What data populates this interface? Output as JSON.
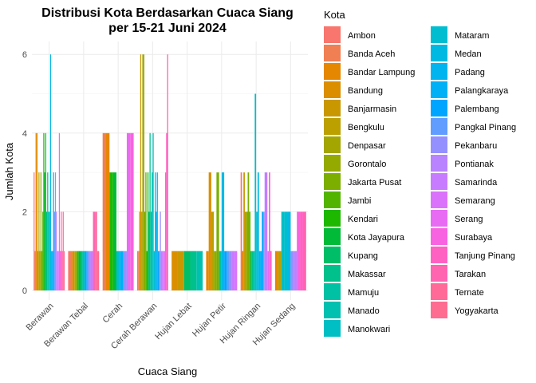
{
  "chart_data": {
    "type": "bar",
    "title_line1": "Distribusi Kota Berdasarkan Cuaca Siang",
    "title_line2": "per 15-21 Juni 2024",
    "xlabel": "Cuaca Siang",
    "ylabel": "Jumlah Kota",
    "ylim": [
      0,
      6.6
    ],
    "yticks": [
      0,
      2,
      4,
      6
    ],
    "grid": true,
    "legend_position": "right",
    "legend_title": "Kota",
    "categories": [
      "Berawan",
      "Berawan Tebal",
      "Cerah",
      "Cerah Berawan",
      "Hujan Lebat",
      "Hujan Petir",
      "Hujan Ringan",
      "Hujan Sedang"
    ],
    "series": [
      {
        "name": "Ambon",
        "color": "#F8766D"
      },
      {
        "name": "Banda Aceh",
        "color": "#F07F54"
      },
      {
        "name": "Bandar Lampung",
        "color": "#E58700"
      },
      {
        "name": "Bandung",
        "color": "#DB8E00"
      },
      {
        "name": "Banjarmasin",
        "color": "#C99800"
      },
      {
        "name": "Bengkulu",
        "color": "#BBA000"
      },
      {
        "name": "Denpasar",
        "color": "#A3A500"
      },
      {
        "name": "Gorontalo",
        "color": "#94AA00"
      },
      {
        "name": "Jakarta Pusat",
        "color": "#7CAE00"
      },
      {
        "name": "Jambi",
        "color": "#53B400"
      },
      {
        "name": "Kendari",
        "color": "#1FB800"
      },
      {
        "name": "Kota Jayapura",
        "color": "#00BA38"
      },
      {
        "name": "Kupang",
        "color": "#00BE67"
      },
      {
        "name": "Makassar",
        "color": "#00C08B"
      },
      {
        "name": "Mamuju",
        "color": "#00C1A3"
      },
      {
        "name": "Manado",
        "color": "#00C0AF"
      },
      {
        "name": "Manokwari",
        "color": "#00BFC4"
      },
      {
        "name": "Mataram",
        "color": "#00BDD0"
      },
      {
        "name": "Medan",
        "color": "#00B9E3"
      },
      {
        "name": "Padang",
        "color": "#00B4EF"
      },
      {
        "name": "Palangkaraya",
        "color": "#00B0F6"
      },
      {
        "name": "Palembang",
        "color": "#00A5FF"
      },
      {
        "name": "Pangkal Pinang",
        "color": "#619CFF"
      },
      {
        "name": "Pekanbaru",
        "color": "#9590FF"
      },
      {
        "name": "Pontianak",
        "color": "#B983FF"
      },
      {
        "name": "Samarinda",
        "color": "#C77CFF"
      },
      {
        "name": "Semarang",
        "color": "#DB72FB"
      },
      {
        "name": "Serang",
        "color": "#E76BF3"
      },
      {
        "name": "Surabaya",
        "color": "#F763E0"
      },
      {
        "name": "Tanjung Pinang",
        "color": "#FF61C3"
      },
      {
        "name": "Tarakan",
        "color": "#FF64B0"
      },
      {
        "name": "Ternate",
        "color": "#FF6A98"
      },
      {
        "name": "Yogyakarta",
        "color": "#FF6C91"
      }
    ],
    "bars": [
      {
        "category": "Berawan",
        "values": [
          [
            "Ambon",
            3
          ],
          [
            "Banda Aceh",
            1
          ],
          [
            "Bandar Lampung",
            4
          ],
          [
            "Bandung",
            4
          ],
          [
            "Banjarmasin",
            1
          ],
          [
            "Bengkulu",
            3
          ],
          [
            "Denpasar",
            1
          ],
          [
            "Gorontalo",
            3
          ],
          [
            "Jakarta Pusat",
            1
          ],
          [
            "Jambi",
            2
          ],
          [
            "Kendari",
            4
          ],
          [
            "Kota Jayapura",
            3
          ],
          [
            "Kupang",
            4
          ],
          [
            "Makassar",
            2
          ],
          [
            "Mamuju",
            3
          ],
          [
            "Manado",
            2
          ],
          [
            "Manokwari",
            2
          ],
          [
            "Medan",
            6
          ],
          [
            "Padang",
            1
          ],
          [
            "Palangkaraya",
            1
          ],
          [
            "Palembang",
            3
          ],
          [
            "Pangkal Pinang",
            2
          ],
          [
            "Pekanbaru",
            3
          ],
          [
            "Pontianak",
            2
          ],
          [
            "Samarinda",
            1
          ],
          [
            "Semarang",
            1
          ],
          [
            "Serang",
            4
          ],
          [
            "Surabaya",
            1
          ],
          [
            "Tanjung Pinang",
            2
          ],
          [
            "Tarakan",
            1
          ],
          [
            "Ternate",
            2
          ],
          [
            "Yogyakarta",
            1
          ]
        ]
      },
      {
        "category": "Berawan Tebal",
        "values": [
          [
            "Ambon",
            1
          ],
          [
            "Banda Aceh",
            1
          ],
          [
            "Bandung",
            1
          ],
          [
            "Bengkulu",
            1
          ],
          [
            "Jambi",
            1
          ],
          [
            "Kota Jayapura",
            1
          ],
          [
            "Makassar",
            1
          ],
          [
            "Manado",
            1
          ],
          [
            "Palembang",
            1
          ],
          [
            "Pangkal Pinang",
            1
          ],
          [
            "Pontianak",
            1
          ],
          [
            "Samarinda",
            1
          ],
          [
            "Tarakan",
            2
          ],
          [
            "Ternate",
            2
          ],
          [
            "Yogyakarta",
            1
          ]
        ]
      },
      {
        "category": "Cerah",
        "values": [
          [
            "Banda Aceh",
            4
          ],
          [
            "Bandar Lampung",
            4
          ],
          [
            "Kendari",
            3
          ],
          [
            "Kota Jayapura",
            3
          ],
          [
            "Mataram",
            1
          ],
          [
            "Palangkaraya",
            1
          ],
          [
            "Pekanbaru",
            1
          ],
          [
            "Serang",
            4
          ],
          [
            "Surabaya",
            4
          ]
        ]
      },
      {
        "category": "Cerah Berawan",
        "values": [
          [
            "Ambon",
            1
          ],
          [
            "Banda Aceh",
            1
          ],
          [
            "Bandung",
            2
          ],
          [
            "Banjarmasin",
            6
          ],
          [
            "Bengkulu",
            2
          ],
          [
            "Denpasar",
            6
          ],
          [
            "Gorontalo",
            6
          ],
          [
            "Jakarta Pusat",
            2
          ],
          [
            "Jambi",
            3
          ],
          [
            "Kendari",
            1
          ],
          [
            "Kota Jayapura",
            3
          ],
          [
            "Kupang",
            2
          ],
          [
            "Makassar",
            4
          ],
          [
            "Mamuju",
            2
          ],
          [
            "Manado",
            3
          ],
          [
            "Manokwari",
            4
          ],
          [
            "Mataram",
            1
          ],
          [
            "Medan",
            3
          ],
          [
            "Padang",
            2
          ],
          [
            "Palangkaraya",
            3
          ],
          [
            "Palembang",
            1
          ],
          [
            "Pangkal Pinang",
            1
          ],
          [
            "Pekanbaru",
            2
          ],
          [
            "Pontianak",
            1
          ],
          [
            "Samarinda",
            1
          ],
          [
            "Semarang",
            1
          ],
          [
            "Serang",
            1
          ],
          [
            "Surabaya",
            3
          ],
          [
            "Tanjung Pinang",
            4
          ],
          [
            "Tarakan",
            6
          ]
        ]
      },
      {
        "category": "Hujan Lebat",
        "values": [
          [
            "Bandung",
            1
          ],
          [
            "Banjarmasin",
            1
          ],
          [
            "Kupang",
            1
          ],
          [
            "Makassar",
            1
          ],
          [
            "Manado",
            1
          ]
        ]
      },
      {
        "category": "Hujan Petir",
        "values": [
          [
            "Bandar Lampung",
            1
          ],
          [
            "Bandung",
            3
          ],
          [
            "Bengkulu",
            2
          ],
          [
            "Gorontalo",
            1
          ],
          [
            "Jakarta Pusat",
            3
          ],
          [
            "Mamuju",
            1
          ],
          [
            "Medan",
            3
          ],
          [
            "Palembang",
            1
          ],
          [
            "Pangkal Pinang",
            1
          ],
          [
            "Pekanbaru",
            1
          ],
          [
            "Samarinda",
            1
          ],
          [
            "Semarang",
            1
          ]
        ]
      },
      {
        "category": "Hujan Ringan",
        "values": [
          [
            "Ambon",
            3
          ],
          [
            "Bandar Lampung",
            1
          ],
          [
            "Banjarmasin",
            3
          ],
          [
            "Denpasar",
            2
          ],
          [
            "Gorontalo",
            2
          ],
          [
            "Jakarta Pusat",
            3
          ],
          [
            "Jambi",
            2
          ],
          [
            "Kupang",
            1
          ],
          [
            "Makassar",
            1
          ],
          [
            "Mamuju",
            1
          ],
          [
            "Manokwari",
            5
          ],
          [
            "Mataram",
            2
          ],
          [
            "Medan",
            3
          ],
          [
            "Padang",
            1
          ],
          [
            "Palangkaraya",
            1
          ],
          [
            "Palembang",
            2
          ],
          [
            "Pekanbaru",
            2
          ],
          [
            "Pontianak",
            3
          ],
          [
            "Samarinda",
            3
          ],
          [
            "Serang",
            1
          ],
          [
            "Surabaya",
            3
          ],
          [
            "Tanjung Pinang",
            1
          ]
        ]
      },
      {
        "category": "Hujan Sedang",
        "values": [
          [
            "Bandar Lampung",
            1
          ],
          [
            "Bengkulu",
            1
          ],
          [
            "Manokwari",
            2
          ],
          [
            "Mataram",
            2
          ],
          [
            "Medan",
            2
          ],
          [
            "Pekanbaru",
            1
          ],
          [
            "Pontianak",
            1
          ],
          [
            "Surabaya",
            2
          ],
          [
            "Tanjung Pinang",
            2
          ],
          [
            "Tarakan",
            2
          ]
        ]
      }
    ]
  }
}
